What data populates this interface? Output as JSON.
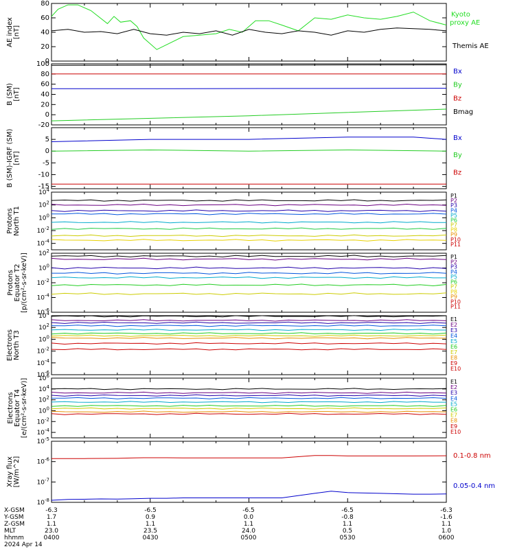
{
  "chart_data": [
    {
      "type": "line",
      "ylabel": [
        "AE index",
        "[nT]"
      ],
      "ylim": [
        0,
        80
      ],
      "yticks": [
        "0",
        "20",
        "40",
        "60",
        "80"
      ],
      "legend": [
        "Kyoto",
        "proxy AE",
        "Themis AE"
      ],
      "colors": {
        "kyoto": "#22dd22",
        "themis": "#000000"
      },
      "series": [
        {
          "name": "Kyoto proxy AE",
          "color": "#22dd22",
          "x": [
            0,
            2,
            5,
            8,
            12,
            17,
            19,
            21,
            24,
            26,
            28,
            32,
            40,
            45,
            50,
            54,
            58,
            62,
            66,
            70,
            75,
            80,
            85,
            90,
            95,
            100,
            105,
            110,
            115,
            120
          ],
          "y": [
            62,
            72,
            78,
            78,
            70,
            52,
            62,
            54,
            56,
            48,
            32,
            16,
            34,
            36,
            38,
            44,
            40,
            56,
            56,
            50,
            42,
            60,
            58,
            64,
            60,
            58,
            62,
            68,
            56,
            50
          ]
        },
        {
          "name": "Themis AE",
          "color": "#000000",
          "x": [
            0,
            5,
            10,
            15,
            20,
            25,
            30,
            35,
            40,
            45,
            50,
            55,
            60,
            65,
            70,
            75,
            80,
            85,
            90,
            95,
            100,
            105,
            110,
            115,
            120
          ],
          "y": [
            42,
            44,
            40,
            41,
            38,
            44,
            38,
            36,
            40,
            38,
            42,
            36,
            44,
            40,
            38,
            42,
            40,
            36,
            42,
            40,
            44,
            46,
            45,
            44,
            42
          ]
        }
      ]
    },
    {
      "type": "line",
      "ylabel": [
        "B (SM)",
        "[nT]"
      ],
      "ylim": [
        -20,
        100
      ],
      "yticks": [
        "-20",
        "0",
        "20",
        "40",
        "60",
        "80",
        "100"
      ],
      "legend": [
        "Bx",
        "By",
        "Bz",
        "Bmag"
      ],
      "series": [
        {
          "name": "Bx",
          "color": "#0000cc",
          "x": [
            0,
            30,
            120
          ],
          "y": [
            51,
            51,
            52
          ]
        },
        {
          "name": "By",
          "color": "#22cc22",
          "x": [
            0,
            60,
            120
          ],
          "y": [
            -12,
            -2,
            11
          ]
        },
        {
          "name": "Bz",
          "color": "#cc0000",
          "x": [
            0,
            120
          ],
          "y": [
            80,
            80
          ]
        },
        {
          "name": "Bmag",
          "color": "#000000",
          "x": [
            0,
            120
          ],
          "y": [
            97,
            98
          ]
        }
      ]
    },
    {
      "type": "line",
      "ylabel": [
        "B (SM)-IGRF (SM)",
        "[nT]"
      ],
      "ylim": [
        -16,
        10
      ],
      "yticks": [
        "-15",
        "-10",
        "-5",
        "0",
        "5"
      ],
      "legend": [
        "Bx",
        "By",
        "Bz"
      ],
      "series": [
        {
          "name": "Bx",
          "color": "#0000cc",
          "x": [
            0,
            30,
            60,
            90,
            110,
            120
          ],
          "y": [
            4,
            5,
            5,
            6,
            6,
            5
          ]
        },
        {
          "name": "By",
          "color": "#22cc22",
          "x": [
            0,
            30,
            60,
            90,
            120
          ],
          "y": [
            0,
            0.5,
            0,
            0.5,
            0
          ]
        },
        {
          "name": "Bz",
          "color": "#cc0000",
          "x": [
            0,
            40,
            80,
            120
          ],
          "y": [
            -14,
            -14,
            -14,
            -14
          ]
        }
      ]
    },
    {
      "type": "line",
      "log": true,
      "ylabel": [
        "Protons",
        "North T1"
      ],
      "ylim": [
        -5,
        4
      ],
      "yticks": [
        "10^4",
        "10^2",
        "10^0",
        "10^-2",
        "10^-4"
      ],
      "legend": [
        "P1",
        "P2",
        "P3",
        "P4",
        "P5",
        "P6",
        "P7",
        "P8",
        "P9",
        "P10",
        "P11"
      ],
      "series": [
        {
          "name": "P1",
          "color": "#000000",
          "level": 2.7
        },
        {
          "name": "P2",
          "color": "#6a0080",
          "level": 2.0
        },
        {
          "name": "P3",
          "color": "#2200aa",
          "level": 1.1
        },
        {
          "name": "P4",
          "color": "#0055dd",
          "level": 0.6
        },
        {
          "name": "P5",
          "color": "#00aacc",
          "level": -0.7
        },
        {
          "name": "P6",
          "color": "#22cc44",
          "level": -1.7
        },
        {
          "name": "P7",
          "color": "#cccc00",
          "level": -2.8
        },
        {
          "name": "P8",
          "color": "#e8d000",
          "level": -3.5
        }
      ]
    },
    {
      "type": "line",
      "log": true,
      "ylabel": [
        "Protons",
        "Equator T2",
        "[p/(cm²-s-sr-keV)]"
      ],
      "ylim": [
        -6,
        2
      ],
      "yticks": [
        "10^2",
        "10^0",
        "10^-2",
        "10^-4",
        "10^-6"
      ],
      "legend": [
        "P1",
        "P2",
        "P3",
        "P4",
        "P5",
        "P6",
        "P7",
        "P8",
        "P9",
        "P10",
        "P11"
      ],
      "series": [
        {
          "name": "P1",
          "color": "#000000",
          "level": 1.6
        },
        {
          "name": "P2",
          "color": "#6a0080",
          "level": 1.2
        },
        {
          "name": "P3",
          "color": "#2200aa",
          "level": 0.0
        },
        {
          "name": "P4",
          "color": "#0055dd",
          "level": -0.7
        },
        {
          "name": "P5",
          "color": "#00aacc",
          "level": -1.3
        },
        {
          "name": "P6",
          "color": "#22cc22",
          "level": -2.3
        },
        {
          "name": "P7",
          "color": "#cccc00",
          "level": -3.5
        }
      ]
    },
    {
      "type": "line",
      "log": true,
      "ylabel": [
        "Electrons",
        "North T3"
      ],
      "ylim": [
        -6,
        4
      ],
      "yticks": [
        "10^4",
        "10^2",
        "10^0",
        "10^-2",
        "10^-4",
        "10^-6"
      ],
      "legend": [
        "E1",
        "E2",
        "E3",
        "E4",
        "E5",
        "E6",
        "E7",
        "E8",
        "E9",
        "E10"
      ],
      "series": [
        {
          "name": "E1",
          "color": "#000000",
          "level": 3.9
        },
        {
          "name": "E2",
          "color": "#6a0080",
          "level": 3.2
        },
        {
          "name": "E3",
          "color": "#2200aa",
          "level": 2.8
        },
        {
          "name": "E4",
          "color": "#0055dd",
          "level": 2.3
        },
        {
          "name": "E5",
          "color": "#00aacc",
          "level": 1.6
        },
        {
          "name": "E6",
          "color": "#22cc22",
          "level": 1.0
        },
        {
          "name": "E7",
          "color": "#cccc00",
          "level": 0.6
        },
        {
          "name": "E8",
          "color": "#e89000",
          "level": 0.2
        },
        {
          "name": "E9",
          "color": "#cc0000",
          "level": -0.7
        },
        {
          "name": "E10",
          "color": "#cc0000",
          "level": -1.7
        }
      ]
    },
    {
      "type": "line",
      "log": true,
      "ylabel": [
        "Electrons",
        "Equator T4",
        "[e/(cm²-s-sr-keV)]"
      ],
      "ylim": [
        -5,
        6
      ],
      "yticks": [
        "10^6",
        "10^4",
        "10^2",
        "10^0",
        "10^-2",
        "10^-4"
      ],
      "legend": [
        "E1",
        "E2",
        "E3",
        "E4",
        "E5",
        "E6",
        "E7",
        "E8",
        "E9",
        "E10"
      ],
      "series": [
        {
          "name": "E1",
          "color": "#000000",
          "level": 4.0
        },
        {
          "name": "E2",
          "color": "#6a0080",
          "level": 3.3
        },
        {
          "name": "E3",
          "color": "#2200aa",
          "level": 2.8
        },
        {
          "name": "E4",
          "color": "#0055dd",
          "level": 2.3
        },
        {
          "name": "E5",
          "color": "#00aacc",
          "level": 1.6
        },
        {
          "name": "E6",
          "color": "#22cc22",
          "level": 0.9
        },
        {
          "name": "E7",
          "color": "#cccc00",
          "level": 0.4
        },
        {
          "name": "E8",
          "color": "#e89000",
          "level": -0.2
        },
        {
          "name": "E9",
          "color": "#cc0000",
          "level": -0.6
        }
      ]
    },
    {
      "type": "line",
      "log": true,
      "ylabel": [
        "Xray flux",
        "[W/m^2]"
      ],
      "ylim": [
        -8,
        -5
      ],
      "yticks": [
        "10^-5",
        "10^-6",
        "10^-7",
        "10^-8"
      ],
      "legend": [
        "0.1-0.8 nm",
        "0.05-0.4 nm"
      ],
      "series": [
        {
          "name": "0.1-0.8 nm",
          "color": "#cc0000",
          "x": [
            0,
            10,
            20,
            25,
            28,
            35,
            40,
            70,
            80,
            85,
            90,
            95,
            100,
            105,
            110,
            120
          ],
          "y": [
            -5.85,
            -5.85,
            -5.84,
            -5.82,
            -5.81,
            -5.81,
            -5.82,
            -5.82,
            -5.7,
            -5.7,
            -5.72,
            -5.72,
            -5.72,
            -5.72,
            -5.72,
            -5.71
          ]
        },
        {
          "name": "0.05-0.4 nm",
          "color": "#0000cc",
          "x": [
            0,
            5,
            10,
            15,
            20,
            25,
            30,
            35,
            40,
            70,
            80,
            85,
            90,
            95,
            100,
            105,
            110,
            115,
            120
          ],
          "y": [
            -7.9,
            -7.86,
            -7.85,
            -7.83,
            -7.84,
            -7.82,
            -7.8,
            -7.8,
            -7.78,
            -7.78,
            -7.56,
            -7.45,
            -7.52,
            -7.54,
            -7.56,
            -7.58,
            -7.6,
            -7.6,
            -7.59
          ]
        }
      ]
    }
  ],
  "footer": {
    "rows": [
      {
        "label": "X-GSM",
        "values": [
          "-6.3",
          "-6.5",
          "-6.5",
          "-6.5",
          "-6.3"
        ]
      },
      {
        "label": "Y-GSM",
        "values": [
          "1.7",
          "0.9",
          "0.0",
          "-0.8",
          "-1.6"
        ]
      },
      {
        "label": "Z-GSM",
        "values": [
          "1.1",
          "1.1",
          "1.1",
          "1.1",
          "1.1"
        ]
      },
      {
        "label": "MLT",
        "values": [
          "23.0",
          "23.5",
          "24.0",
          "0.5",
          "1.0"
        ]
      },
      {
        "label": "hhmm",
        "values": [
          "0400",
          "0430",
          "0500",
          "0530",
          "0600"
        ]
      }
    ],
    "date": "2024 Apr 14"
  }
}
